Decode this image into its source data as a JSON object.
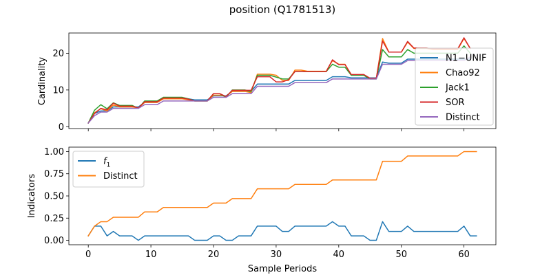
{
  "title": "position (Q1781513)",
  "colors": {
    "blue": "#1f77b4",
    "orange": "#ff7f0e",
    "green": "#2ca02c",
    "red": "#d62728",
    "purple": "#9467bd"
  },
  "chart_data": [
    {
      "type": "line",
      "xlabel": "",
      "ylabel": "Cardinality",
      "xlim": [
        -3.1,
        65.1
      ],
      "ylim": [
        -0.5,
        25.5
      ],
      "xticks": [
        0,
        10,
        20,
        30,
        40,
        50,
        60
      ],
      "yticks": [
        0,
        10,
        20
      ],
      "legend_position": "center-right",
      "grid": false,
      "series": [
        {
          "name": "N1−UNIF",
          "color": "#1f77b4",
          "x": [
            0,
            1,
            2,
            3,
            4,
            5,
            6,
            7,
            8,
            9,
            10,
            11,
            12,
            13,
            14,
            15,
            16,
            17,
            18,
            19,
            20,
            21,
            22,
            23,
            24,
            25,
            26,
            27,
            28,
            29,
            30,
            31,
            32,
            33,
            34,
            35,
            36,
            37,
            38,
            39,
            40,
            41,
            42,
            43,
            44,
            45,
            46,
            47,
            48,
            49,
            50,
            51,
            52,
            53,
            54,
            55,
            56,
            57,
            58,
            59,
            60,
            61
          ],
          "y": [
            1,
            3.6,
            4.3,
            4.3,
            5.4,
            5.4,
            5.4,
            5.4,
            5.4,
            6.6,
            6.6,
            6.6,
            7.6,
            7.6,
            7.6,
            7.6,
            7.6,
            7.3,
            7.3,
            7.3,
            8.4,
            8.4,
            8.4,
            9.6,
            9.6,
            9.6,
            9.6,
            11.6,
            11.6,
            11.6,
            11.6,
            11.6,
            11.6,
            12.6,
            12.6,
            12.6,
            12.6,
            12.6,
            12.6,
            13.6,
            13.6,
            13.6,
            13.3,
            13.3,
            13.3,
            13.3,
            13.3,
            17.6,
            17.3,
            17.3,
            17.3,
            18.4,
            18.4,
            18.4,
            18.4,
            18.4,
            18.4,
            18.4,
            18.4,
            18.4,
            18.4,
            18.4
          ]
        },
        {
          "name": "Chao92",
          "color": "#ff7f0e",
          "x": [
            0,
            1,
            2,
            3,
            4,
            5,
            6,
            7,
            8,
            9,
            10,
            11,
            12,
            13,
            14,
            15,
            16,
            17,
            18,
            19,
            20,
            21,
            22,
            23,
            24,
            25,
            26,
            27,
            28,
            29,
            30,
            31,
            32,
            33,
            34,
            35,
            36,
            37,
            38,
            39,
            40,
            41,
            42,
            43,
            44,
            45,
            46,
            47,
            48,
            49,
            50,
            51,
            52,
            53,
            54,
            55,
            56,
            57,
            58,
            59,
            60,
            61
          ],
          "y": [
            1,
            3.8,
            4.9,
            4.3,
            5.9,
            5.4,
            5.4,
            5.4,
            5.1,
            6.6,
            6.6,
            6.6,
            7.6,
            7.6,
            7.6,
            7.6,
            7.3,
            7.0,
            7.0,
            7.0,
            8.6,
            8.6,
            8.3,
            9.6,
            9.6,
            9.6,
            9.3,
            14.3,
            14.3,
            14.3,
            14.0,
            12.6,
            12.6,
            15.4,
            15.4,
            15.1,
            15.1,
            15.1,
            15.1,
            18.0,
            17.0,
            17.0,
            14.1,
            14.1,
            14.1,
            13.1,
            13.1,
            24.0,
            20.3,
            20.3,
            20.3,
            23.0,
            21.3,
            21.3,
            21.3,
            21.0,
            21.0,
            21.0,
            21.0,
            21.0,
            24.0,
            21.3
          ]
        },
        {
          "name": "Jack1",
          "color": "#2ca02c",
          "x": [
            0,
            1,
            2,
            3,
            4,
            5,
            6,
            7,
            8,
            9,
            10,
            11,
            12,
            13,
            14,
            15,
            16,
            17,
            18,
            19,
            20,
            21,
            22,
            23,
            24,
            25,
            26,
            27,
            28,
            29,
            30,
            31,
            32,
            33,
            34,
            35,
            36,
            37,
            38,
            39,
            40,
            41,
            42,
            43,
            44,
            45,
            46,
            47,
            48,
            49,
            50,
            51,
            52,
            53,
            54,
            55,
            56,
            57,
            58,
            59,
            60,
            61
          ],
          "y": [
            1,
            4.5,
            6.0,
            4.9,
            6.5,
            5.8,
            5.8,
            5.8,
            5.0,
            7.0,
            7.0,
            7.0,
            8.0,
            8.0,
            8.0,
            8.0,
            7.6,
            7.0,
            7.0,
            7.0,
            9.0,
            9.0,
            8.0,
            10.0,
            10.0,
            10.0,
            9.6,
            14.0,
            14.0,
            14.0,
            13.5,
            13.0,
            13.0,
            15.0,
            15.0,
            15.0,
            15.0,
            15.0,
            15.0,
            17.0,
            16.2,
            16.2,
            14.0,
            14.0,
            14.0,
            13.0,
            13.0,
            21.0,
            19.0,
            19.0,
            19.0,
            21.0,
            20.0,
            20.0,
            20.0,
            20.0,
            20.0,
            20.0,
            20.0,
            20.0,
            22.0,
            20.0
          ]
        },
        {
          "name": "SOR",
          "color": "#d62728",
          "x": [
            0,
            1,
            2,
            3,
            4,
            5,
            6,
            7,
            8,
            9,
            10,
            11,
            12,
            13,
            14,
            15,
            16,
            17,
            18,
            19,
            20,
            21,
            22,
            23,
            24,
            25,
            26,
            27,
            28,
            29,
            30,
            31,
            32,
            33,
            34,
            35,
            36,
            37,
            38,
            39,
            40,
            41,
            42,
            43,
            44,
            45,
            46,
            47,
            48,
            49,
            50,
            51,
            52,
            53,
            54,
            55,
            56,
            57,
            58,
            59,
            60,
            61
          ],
          "y": [
            1,
            3.6,
            5.0,
            4.6,
            6.4,
            5.6,
            5.6,
            5.6,
            5.1,
            6.8,
            6.8,
            6.8,
            7.8,
            7.8,
            7.8,
            7.8,
            7.5,
            7.0,
            7.0,
            7.0,
            9.0,
            9.0,
            8.2,
            9.9,
            9.9,
            9.9,
            9.9,
            13.6,
            13.6,
            13.6,
            12.2,
            12.2,
            12.8,
            15.0,
            15.0,
            15.0,
            15.0,
            15.0,
            15.0,
            18.2,
            16.9,
            16.9,
            14.2,
            14.2,
            14.2,
            13.2,
            13.2,
            23.3,
            20.3,
            20.3,
            20.3,
            23.2,
            21.4,
            21.4,
            21.4,
            21.2,
            21.2,
            21.2,
            21.2,
            21.2,
            24.2,
            21.3
          ]
        },
        {
          "name": "Distinct",
          "color": "#9467bd",
          "x": [
            0,
            1,
            2,
            3,
            4,
            5,
            6,
            7,
            8,
            9,
            10,
            11,
            12,
            13,
            14,
            15,
            16,
            17,
            18,
            19,
            20,
            21,
            22,
            23,
            24,
            25,
            26,
            27,
            28,
            29,
            30,
            31,
            32,
            33,
            34,
            35,
            36,
            37,
            38,
            39,
            40,
            41,
            42,
            43,
            44,
            45,
            46,
            47,
            48,
            49,
            50,
            51,
            52,
            53,
            54,
            55,
            56,
            57,
            58,
            59,
            60,
            61
          ],
          "y": [
            1,
            3.0,
            4.0,
            4.0,
            5.0,
            5.0,
            5.0,
            5.0,
            5.0,
            6.0,
            6.0,
            6.0,
            7.0,
            7.0,
            7.0,
            7.0,
            7.0,
            7.0,
            7.0,
            7.0,
            8.0,
            8.0,
            8.0,
            9.0,
            9.0,
            9.0,
            9.0,
            11.0,
            11.0,
            11.0,
            11.0,
            11.0,
            11.0,
            12.0,
            12.0,
            12.0,
            12.0,
            12.0,
            12.0,
            13.0,
            13.0,
            13.0,
            13.0,
            13.0,
            13.0,
            13.0,
            13.0,
            17.0,
            17.0,
            17.0,
            17.0,
            18.0,
            18.0,
            18.0,
            18.0,
            18.0,
            18.0,
            18.0,
            18.0,
            18.0,
            18.0,
            19.0
          ]
        }
      ]
    },
    {
      "type": "line",
      "xlabel": "Sample Periods",
      "ylabel": "Indicators",
      "xlim": [
        -3.1,
        65.1
      ],
      "ylim": [
        -0.05,
        1.05
      ],
      "xticks": [
        0,
        10,
        20,
        30,
        40,
        50,
        60
      ],
      "yticks": [
        0.0,
        0.25,
        0.5,
        0.75,
        1.0
      ],
      "ytick_labels": [
        "0.00",
        "0.25",
        "0.50",
        "0.75",
        "1.00"
      ],
      "legend_position": "upper-left",
      "grid": false,
      "series": [
        {
          "name": "f₁",
          "name_base": "f",
          "name_sub": "1",
          "color": "#1f77b4",
          "x": [
            0,
            1,
            2,
            3,
            4,
            5,
            6,
            7,
            8,
            9,
            10,
            11,
            12,
            13,
            14,
            15,
            16,
            17,
            18,
            19,
            20,
            21,
            22,
            23,
            24,
            25,
            26,
            27,
            28,
            29,
            30,
            31,
            32,
            33,
            34,
            35,
            36,
            37,
            38,
            39,
            40,
            41,
            42,
            43,
            44,
            45,
            46,
            47,
            48,
            49,
            50,
            51,
            52,
            53,
            54,
            55,
            56,
            57,
            58,
            59,
            60,
            61,
            62
          ],
          "y": [
            0.05,
            0.16,
            0.16,
            0.05,
            0.1,
            0.05,
            0.05,
            0.05,
            0.0,
            0.05,
            0.05,
            0.05,
            0.05,
            0.05,
            0.05,
            0.05,
            0.05,
            0.0,
            0.0,
            0.0,
            0.05,
            0.05,
            0.0,
            0.0,
            0.05,
            0.05,
            0.05,
            0.16,
            0.16,
            0.16,
            0.16,
            0.1,
            0.1,
            0.16,
            0.16,
            0.16,
            0.16,
            0.16,
            0.16,
            0.21,
            0.16,
            0.16,
            0.05,
            0.05,
            0.05,
            0.0,
            0.0,
            0.21,
            0.1,
            0.1,
            0.1,
            0.16,
            0.1,
            0.1,
            0.1,
            0.1,
            0.1,
            0.1,
            0.1,
            0.1,
            0.16,
            0.05,
            0.05
          ]
        },
        {
          "name": "Distinct",
          "color": "#ff7f0e",
          "x": [
            0,
            1,
            2,
            3,
            4,
            5,
            6,
            7,
            8,
            9,
            10,
            11,
            12,
            13,
            14,
            15,
            16,
            17,
            18,
            19,
            20,
            21,
            22,
            23,
            24,
            25,
            26,
            27,
            28,
            29,
            30,
            31,
            32,
            33,
            34,
            35,
            36,
            37,
            38,
            39,
            40,
            41,
            42,
            43,
            44,
            45,
            46,
            47,
            48,
            49,
            50,
            51,
            52,
            53,
            54,
            55,
            56,
            57,
            58,
            59,
            60,
            61,
            62
          ],
          "y": [
            0.05,
            0.16,
            0.21,
            0.21,
            0.26,
            0.26,
            0.26,
            0.26,
            0.26,
            0.32,
            0.32,
            0.32,
            0.37,
            0.37,
            0.37,
            0.37,
            0.37,
            0.37,
            0.37,
            0.37,
            0.42,
            0.42,
            0.42,
            0.47,
            0.47,
            0.47,
            0.47,
            0.58,
            0.58,
            0.58,
            0.58,
            0.58,
            0.58,
            0.63,
            0.63,
            0.63,
            0.63,
            0.63,
            0.63,
            0.68,
            0.68,
            0.68,
            0.68,
            0.68,
            0.68,
            0.68,
            0.68,
            0.89,
            0.89,
            0.89,
            0.89,
            0.95,
            0.95,
            0.95,
            0.95,
            0.95,
            0.95,
            0.95,
            0.95,
            0.95,
            1.0,
            1.0,
            1.0
          ]
        }
      ]
    }
  ]
}
